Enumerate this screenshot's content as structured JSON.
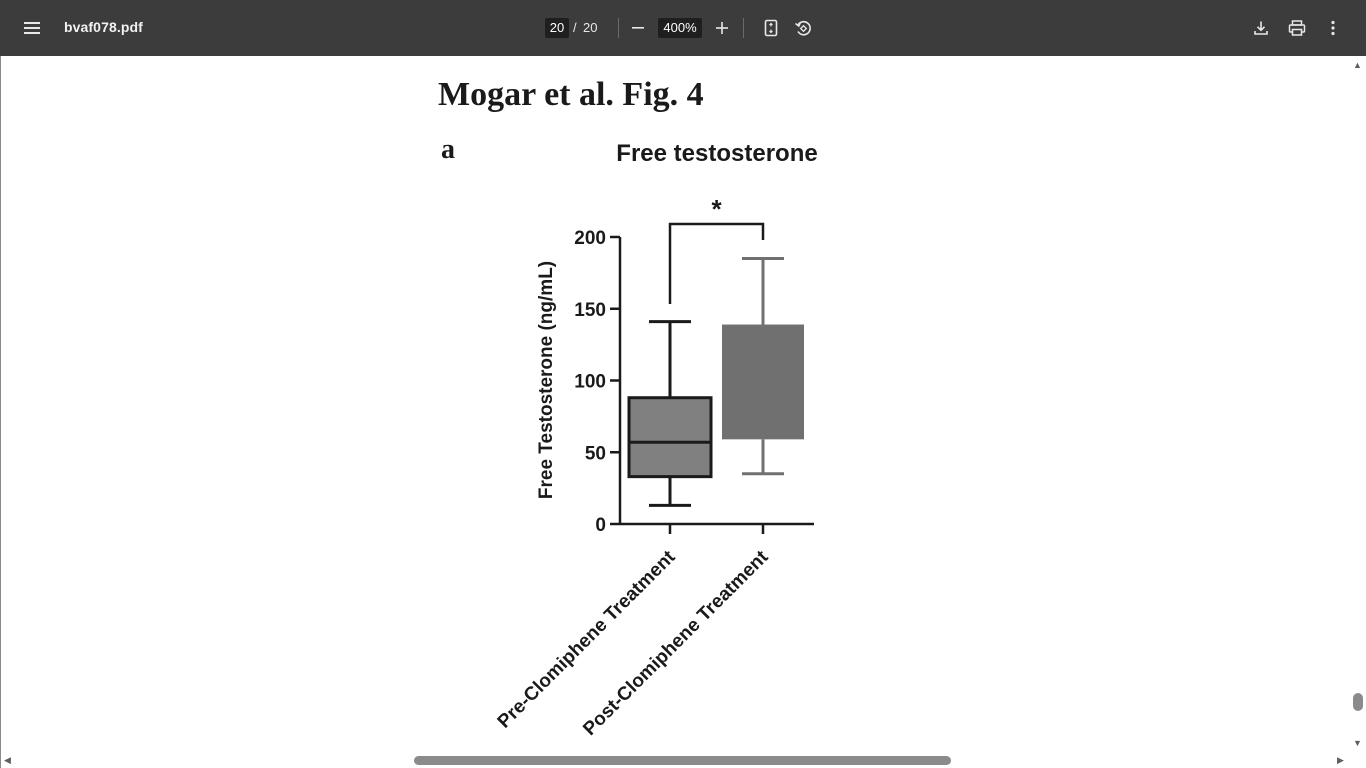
{
  "toolbar": {
    "file_name": "bvaf078.pdf",
    "current_page": "20",
    "page_separator": "/",
    "total_pages": "20",
    "zoom_level": "400%",
    "icons": {
      "menu": "menu-icon",
      "zoom_out": "minus-icon",
      "zoom_in": "plus-icon",
      "fit": "fit-page-icon",
      "rotate": "rotate-icon",
      "download": "download-icon",
      "print": "print-icon",
      "more": "more-vert-icon"
    }
  },
  "document": {
    "heading": "Mogar et al. Fig. 4",
    "panel_label": "a"
  },
  "chart_data": {
    "type": "box",
    "title": "Free testosterone",
    "ylabel": "Free Testosterone (ng/mL)",
    "xlabel": "",
    "ylim": [
      0,
      200
    ],
    "yticks": [
      0,
      50,
      100,
      150,
      200
    ],
    "categories": [
      "Pre-Clomiphene Treatment",
      "Post-Clomiphene Treatment"
    ],
    "boxes": [
      {
        "category": "Pre-Clomiphene Treatment",
        "min": 13,
        "q1": 33,
        "median": 57,
        "q3": 88,
        "max": 141,
        "color": "#808080"
      },
      {
        "category": "Post-Clomiphene Treatment",
        "min": 35,
        "q1": 59,
        "q3": 139,
        "max": 185,
        "color": "#707070"
      }
    ],
    "significance": {
      "label": "*",
      "between": [
        0,
        1
      ]
    }
  }
}
